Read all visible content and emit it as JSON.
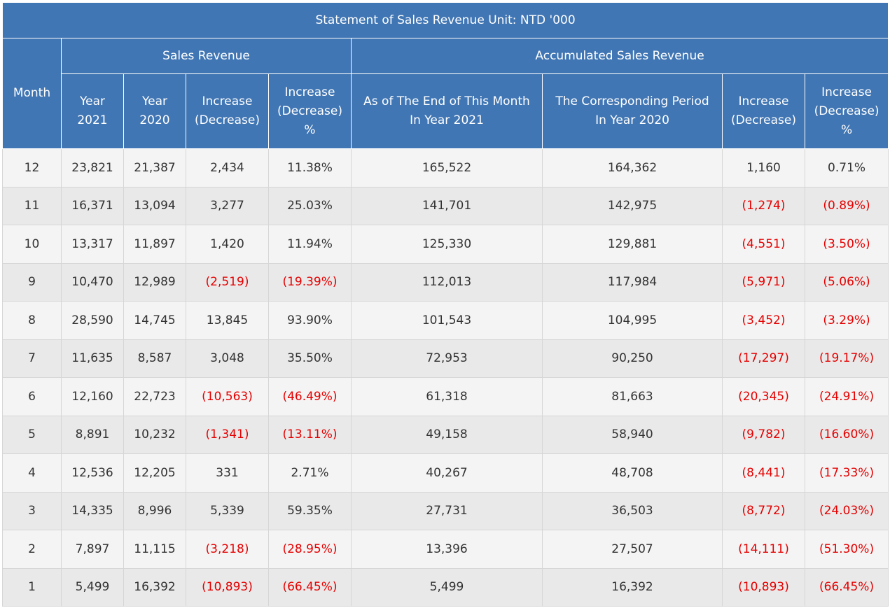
{
  "title": "Statement of Sales Revenue  Unit: NTD '000",
  "header": {
    "month": "Month",
    "group_sales": "Sales Revenue",
    "group_accum": "Accumulated Sales Revenue",
    "columns": [
      [
        "Year",
        "2021"
      ],
      [
        "Year",
        "2020"
      ],
      [
        "Increase",
        "(Decrease)"
      ],
      [
        "Increase",
        "(Decrease)",
        "%"
      ],
      [
        "As of The End of This Month",
        "In Year 2021"
      ],
      [
        "The Corresponding Period",
        "In Year 2020"
      ],
      [
        "Increase",
        "(Decrease)"
      ],
      [
        "Increase",
        "(Decrease)",
        "%"
      ]
    ]
  },
  "colors": {
    "header_bg": "#4176b4",
    "negative": "#e60000"
  },
  "rows": [
    [
      "12",
      "23,821",
      "21,387",
      "2,434",
      "11.38%",
      "165,522",
      "164,362",
      "1,160",
      "0.71%"
    ],
    [
      "11",
      "16,371",
      "13,094",
      "3,277",
      "25.03%",
      "141,701",
      "142,975",
      "(1,274)",
      "(0.89%)"
    ],
    [
      "10",
      "13,317",
      "11,897",
      "1,420",
      "11.94%",
      "125,330",
      "129,881",
      "(4,551)",
      "(3.50%)"
    ],
    [
      "9",
      "10,470",
      "12,989",
      "(2,519)",
      "(19.39%)",
      "112,013",
      "117,984",
      "(5,971)",
      "(5.06%)"
    ],
    [
      "8",
      "28,590",
      "14,745",
      "13,845",
      "93.90%",
      "101,543",
      "104,995",
      "(3,452)",
      "(3.29%)"
    ],
    [
      "7",
      "11,635",
      "8,587",
      "3,048",
      "35.50%",
      "72,953",
      "90,250",
      "(17,297)",
      "(19.17%)"
    ],
    [
      "6",
      "12,160",
      "22,723",
      "(10,563)",
      "(46.49%)",
      "61,318",
      "81,663",
      "(20,345)",
      "(24.91%)"
    ],
    [
      "5",
      "8,891",
      "10,232",
      "(1,341)",
      "(13.11%)",
      "49,158",
      "58,940",
      "(9,782)",
      "(16.60%)"
    ],
    [
      "4",
      "12,536",
      "12,205",
      "331",
      "2.71%",
      "40,267",
      "48,708",
      "(8,441)",
      "(17.33%)"
    ],
    [
      "3",
      "14,335",
      "8,996",
      "5,339",
      "59.35%",
      "27,731",
      "36,503",
      "(8,772)",
      "(24.03%)"
    ],
    [
      "2",
      "7,897",
      "11,115",
      "(3,218)",
      "(28.95%)",
      "13,396",
      "27,507",
      "(14,111)",
      "(51.30%)"
    ],
    [
      "1",
      "5,499",
      "16,392",
      "(10,893)",
      "(66.45%)",
      "5,499",
      "16,392",
      "(10,893)",
      "(66.45%)"
    ]
  ]
}
